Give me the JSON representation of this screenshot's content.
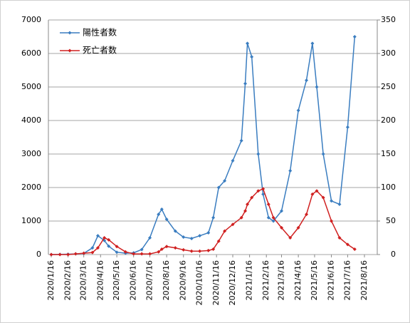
{
  "chart_data": {
    "type": "line",
    "x": [
      "2020/1/16",
      "2020/2/1",
      "2020/2/16",
      "2020/3/1",
      "2020/3/16",
      "2020/4/1",
      "2020/4/11",
      "2020/4/23",
      "2020/5/1",
      "2020/5/16",
      "2020/6/1",
      "2020/6/16",
      "2020/7/1",
      "2020/7/16",
      "2020/8/1",
      "2020/8/7",
      "2020/8/16",
      "2020/9/1",
      "2020/9/16",
      "2020/10/1",
      "2020/10/16",
      "2020/11/1",
      "2020/11/10",
      "2020/11/20",
      "2020/12/1",
      "2020/12/16",
      "2021/1/1",
      "2021/1/8",
      "2021/1/12",
      "2021/1/20",
      "2021/2/1",
      "2021/2/10",
      "2021/2/20",
      "2021/3/1",
      "2021/3/16",
      "2021/4/1",
      "2021/4/16",
      "2021/5/1",
      "2021/5/12",
      "2021/5/20",
      "2021/6/1",
      "2021/6/16",
      "2021/7/1",
      "2021/7/16",
      "2021/7/29"
    ],
    "series": [
      {
        "name": "陽性者数",
        "color": "#3a7dc0",
        "axis": "y",
        "values": [
          0,
          5,
          10,
          20,
          35,
          200,
          560,
          420,
          250,
          70,
          40,
          50,
          150,
          500,
          1200,
          1350,
          1050,
          700,
          520,
          480,
          560,
          650,
          1100,
          2000,
          2200,
          2800,
          3400,
          5100,
          6300,
          5900,
          3000,
          1800,
          1100,
          1000,
          1300,
          2500,
          4300,
          5200,
          6300,
          5000,
          3000,
          1600,
          1500,
          3800,
          6500
        ]
      },
      {
        "name": "死亡者数",
        "color": "#d02020",
        "axis": "y2",
        "values": [
          0,
          0,
          0,
          1,
          2,
          3,
          10,
          25,
          22,
          12,
          4,
          1,
          1,
          1,
          4,
          8,
          12,
          10,
          7,
          5,
          5,
          6,
          8,
          20,
          35,
          45,
          55,
          65,
          75,
          85,
          95,
          98,
          75,
          55,
          40,
          25,
          40,
          60,
          90,
          95,
          85,
          50,
          25,
          15,
          8
        ]
      }
    ],
    "xlim": [
      "2020/1/16",
      "2021/8/16"
    ],
    "xticks": [
      "2020/1/16",
      "2020/2/16",
      "2020/3/16",
      "2020/4/16",
      "2020/5/16",
      "2020/6/16",
      "2020/7/16",
      "2020/8/16",
      "2020/9/16",
      "2020/10/16",
      "2020/11/16",
      "2020/12/16",
      "2021/1/16",
      "2021/2/16",
      "2021/3/16",
      "2021/4/16",
      "2021/5/16",
      "2021/6/16",
      "2021/7/16",
      "2021/8/16"
    ],
    "ylim": [
      0,
      7000
    ],
    "yticks": [
      0,
      1000,
      2000,
      3000,
      4000,
      5000,
      6000,
      7000
    ],
    "y2lim": [
      0,
      350
    ],
    "y2ticks": [
      0,
      50,
      100,
      150,
      200,
      250,
      300,
      350
    ],
    "grid": true,
    "legend": "upper left"
  }
}
